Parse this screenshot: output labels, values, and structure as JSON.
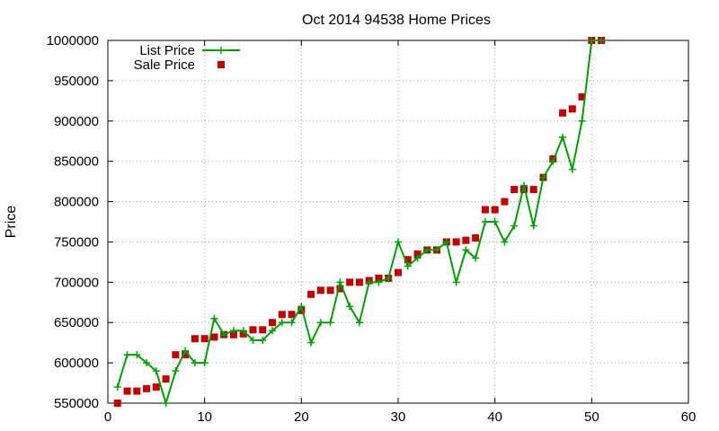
{
  "chart_data": {
    "type": "line",
    "title": "Oct 2014 94538 Home Prices",
    "xlabel": "",
    "ylabel": "Price",
    "xlim": [
      0,
      60
    ],
    "ylim": [
      550000,
      1000000
    ],
    "xticks": [
      0,
      10,
      20,
      30,
      40,
      50,
      60
    ],
    "yticks": [
      550000,
      600000,
      650000,
      700000,
      750000,
      800000,
      850000,
      900000,
      950000,
      1000000
    ],
    "grid": true,
    "legend_position": "top-left",
    "series": [
      {
        "name": "List Price",
        "style": "line-plus",
        "color": "#00a000",
        "x": [
          1,
          2,
          3,
          4,
          5,
          6,
          7,
          8,
          9,
          10,
          11,
          12,
          13,
          14,
          15,
          16,
          17,
          18,
          19,
          20,
          21,
          22,
          23,
          24,
          25,
          26,
          27,
          28,
          29,
          30,
          31,
          32,
          33,
          34,
          35,
          36,
          37,
          38,
          39,
          40,
          41,
          42,
          43,
          44,
          45,
          46,
          47,
          48,
          49,
          50,
          51
        ],
        "values": [
          570000,
          610000,
          610000,
          600000,
          590000,
          550000,
          590000,
          615000,
          600000,
          600000,
          655000,
          635000,
          640000,
          640000,
          628000,
          628000,
          640000,
          650000,
          650000,
          670000,
          625000,
          650000,
          650000,
          700000,
          670000,
          650000,
          700000,
          700000,
          705000,
          750000,
          720000,
          730000,
          740000,
          740000,
          750000,
          700000,
          740000,
          730000,
          775000,
          775000,
          750000,
          770000,
          820000,
          770000,
          830000,
          850000,
          880000,
          840000,
          900000,
          1000000,
          1000000
        ]
      },
      {
        "name": "Sale Price",
        "style": "square-markers",
        "color": "#c00000",
        "x": [
          1,
          2,
          3,
          4,
          5,
          6,
          7,
          8,
          9,
          10,
          11,
          12,
          13,
          14,
          15,
          16,
          17,
          18,
          19,
          20,
          21,
          22,
          23,
          24,
          25,
          26,
          27,
          28,
          29,
          30,
          31,
          32,
          33,
          34,
          35,
          36,
          37,
          38,
          39,
          40,
          41,
          42,
          43,
          44,
          45,
          46,
          47,
          48,
          49,
          50,
          51
        ],
        "values": [
          550000,
          565000,
          565000,
          568000,
          570000,
          580000,
          610000,
          610000,
          630000,
          630000,
          632000,
          635000,
          635000,
          636000,
          641000,
          641000,
          650000,
          660000,
          660000,
          665000,
          685000,
          690000,
          690000,
          692000,
          700000,
          700000,
          702000,
          705000,
          705000,
          712000,
          728000,
          735000,
          740000,
          740000,
          750000,
          750000,
          752000,
          755000,
          790000,
          790000,
          800000,
          815000,
          815000,
          815000,
          830000,
          853000,
          910000,
          915000,
          930000,
          1000000,
          1000000
        ]
      }
    ]
  }
}
